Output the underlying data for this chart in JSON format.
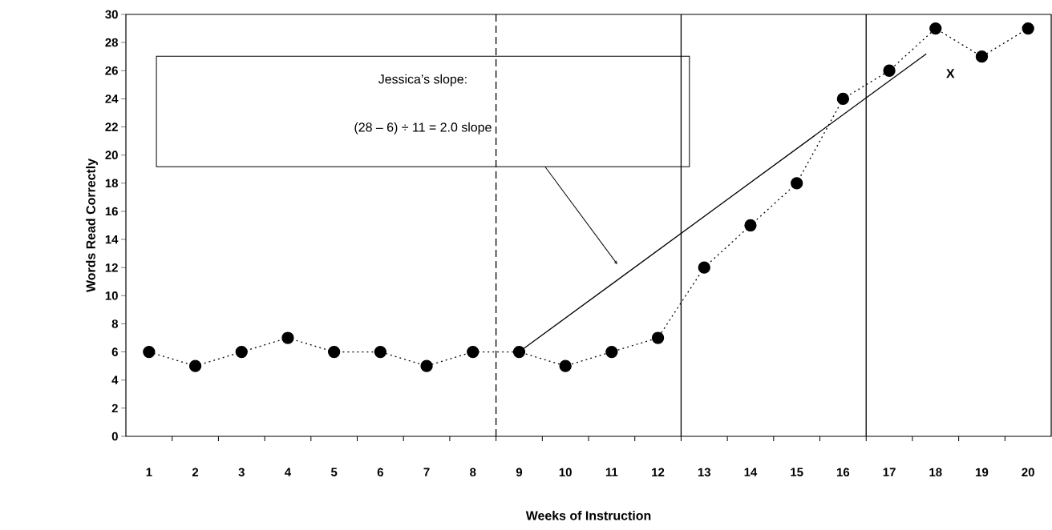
{
  "chart_data": {
    "type": "line",
    "xlabel": "Weeks of Instruction",
    "ylabel": "Words Read Correctly",
    "x": [
      1,
      2,
      3,
      4,
      5,
      6,
      7,
      8,
      9,
      10,
      11,
      12,
      13,
      14,
      15,
      16,
      17,
      18,
      19,
      20
    ],
    "series": [
      {
        "color": "#000000",
        "marker": "circle",
        "line_style": "dotted",
        "values": [
          6,
          5,
          6,
          7,
          6,
          6,
          5,
          6,
          6,
          5,
          6,
          7,
          12,
          15,
          18,
          24,
          26,
          29,
          27,
          29
        ]
      },
      {
        "color": "#000000",
        "marker": "none",
        "line_style": "solid",
        "x": [
          9,
          17.8
        ],
        "values": [
          6,
          27.2
        ]
      }
    ],
    "xlim": [
      0.5,
      20.5
    ],
    "xticks": [
      1,
      2,
      3,
      4,
      5,
      6,
      7,
      8,
      9,
      10,
      11,
      12,
      13,
      14,
      15,
      16,
      17,
      18,
      19,
      20,
      {
        "value": 1.5,
        "label": null
      },
      {
        "value": 2.5,
        "label": null
      },
      {
        "value": 3.5,
        "label": null
      },
      {
        "value": 4.5,
        "label": null
      },
      {
        "value": 5.5,
        "label": null
      },
      {
        "value": 6.5,
        "label": null
      },
      {
        "value": 7.5,
        "label": null
      },
      {
        "value": 8.5,
        "label": null
      },
      {
        "value": 9.5,
        "label": null
      },
      {
        "value": 10.5,
        "label": null
      },
      {
        "value": 11.5,
        "label": null
      },
      {
        "value": 12.5,
        "label": null
      },
      {
        "value": 13.5,
        "label": null
      },
      {
        "value": 14.5,
        "label": null
      },
      {
        "value": 15.5,
        "label": null
      },
      {
        "value": 16.5,
        "label": null
      },
      {
        "value": 17.5,
        "label": null
      },
      {
        "value": 18.5,
        "label": null
      },
      {
        "value": 19.5,
        "label": null
      }
    ],
    "ylim": [
      0,
      30
    ],
    "yticks": [
      0,
      2,
      4,
      6,
      8,
      10,
      12,
      14,
      16,
      18,
      20,
      22,
      24,
      26,
      28,
      30
    ],
    "ref_lines": [
      {
        "axis": "x",
        "value": 8.5,
        "color": "#000000",
        "line_style": "dashed"
      },
      {
        "axis": "x",
        "value": 12.5,
        "color": "#000000",
        "line_style": "solid"
      },
      {
        "axis": "x",
        "value": 16.5,
        "color": "#000000",
        "line_style": "solid"
      }
    ],
    "annotations": [
      "Jessica’s slope:",
      "(28 – 6) ÷ 11 = 2.0 slope",
      "X"
    ],
    "grid": false
  }
}
